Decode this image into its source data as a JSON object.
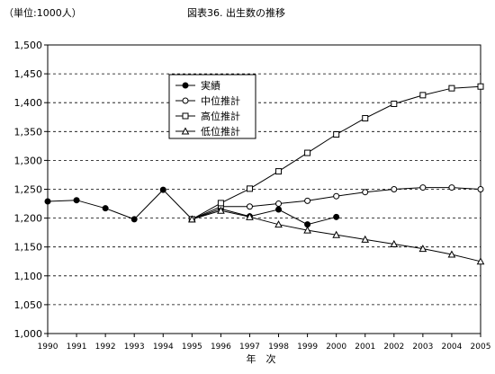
{
  "header": {
    "unit_label": "（単位:1000人）",
    "title": "図表36. 出生数の推移"
  },
  "chart_data": {
    "type": "line",
    "title": "図表36. 出生数の推移",
    "unit": "（単位:1000人）",
    "xlabel": "年　次",
    "ylabel": "",
    "x": [
      "1990",
      "1991",
      "1992",
      "1993",
      "1994",
      "1995",
      "1996",
      "1997",
      "1998",
      "1999",
      "2000",
      "2001",
      "2002",
      "2003",
      "2004",
      "2005"
    ],
    "ylim": [
      1000,
      1500
    ],
    "yticks": [
      1000,
      1050,
      1100,
      1150,
      1200,
      1250,
      1300,
      1350,
      1400,
      1450,
      1500
    ],
    "ytick_labels": [
      "1,000",
      "1,050",
      "1,100",
      "1,150",
      "1,200",
      "1,250",
      "1,300",
      "1,350",
      "1,400",
      "1,450",
      "1,500"
    ],
    "grid": "horizontal dashed",
    "legend_position": "top-center",
    "series": [
      {
        "name": "実績",
        "marker": "filled-circle",
        "values": [
          1229,
          1231,
          1217,
          1198,
          1249,
          1198,
          1216,
          1203,
          1215,
          1189,
          1202,
          null,
          null,
          null,
          null,
          null
        ]
      },
      {
        "name": "中位推計",
        "marker": "open-circle",
        "values": [
          null,
          null,
          null,
          null,
          null,
          1198,
          1220,
          1220,
          1225,
          1230,
          1238,
          1245,
          1250,
          1253,
          1253,
          1250
        ]
      },
      {
        "name": "高位推計",
        "marker": "open-square",
        "values": [
          null,
          null,
          null,
          null,
          null,
          1198,
          1226,
          1251,
          1281,
          1313,
          1345,
          1373,
          1398,
          1413,
          1425,
          1428
        ]
      },
      {
        "name": "低位推計",
        "marker": "open-triangle",
        "values": [
          null,
          null,
          null,
          null,
          null,
          1198,
          1213,
          1202,
          1189,
          1179,
          1171,
          1163,
          1155,
          1147,
          1137,
          1125
        ]
      }
    ]
  }
}
